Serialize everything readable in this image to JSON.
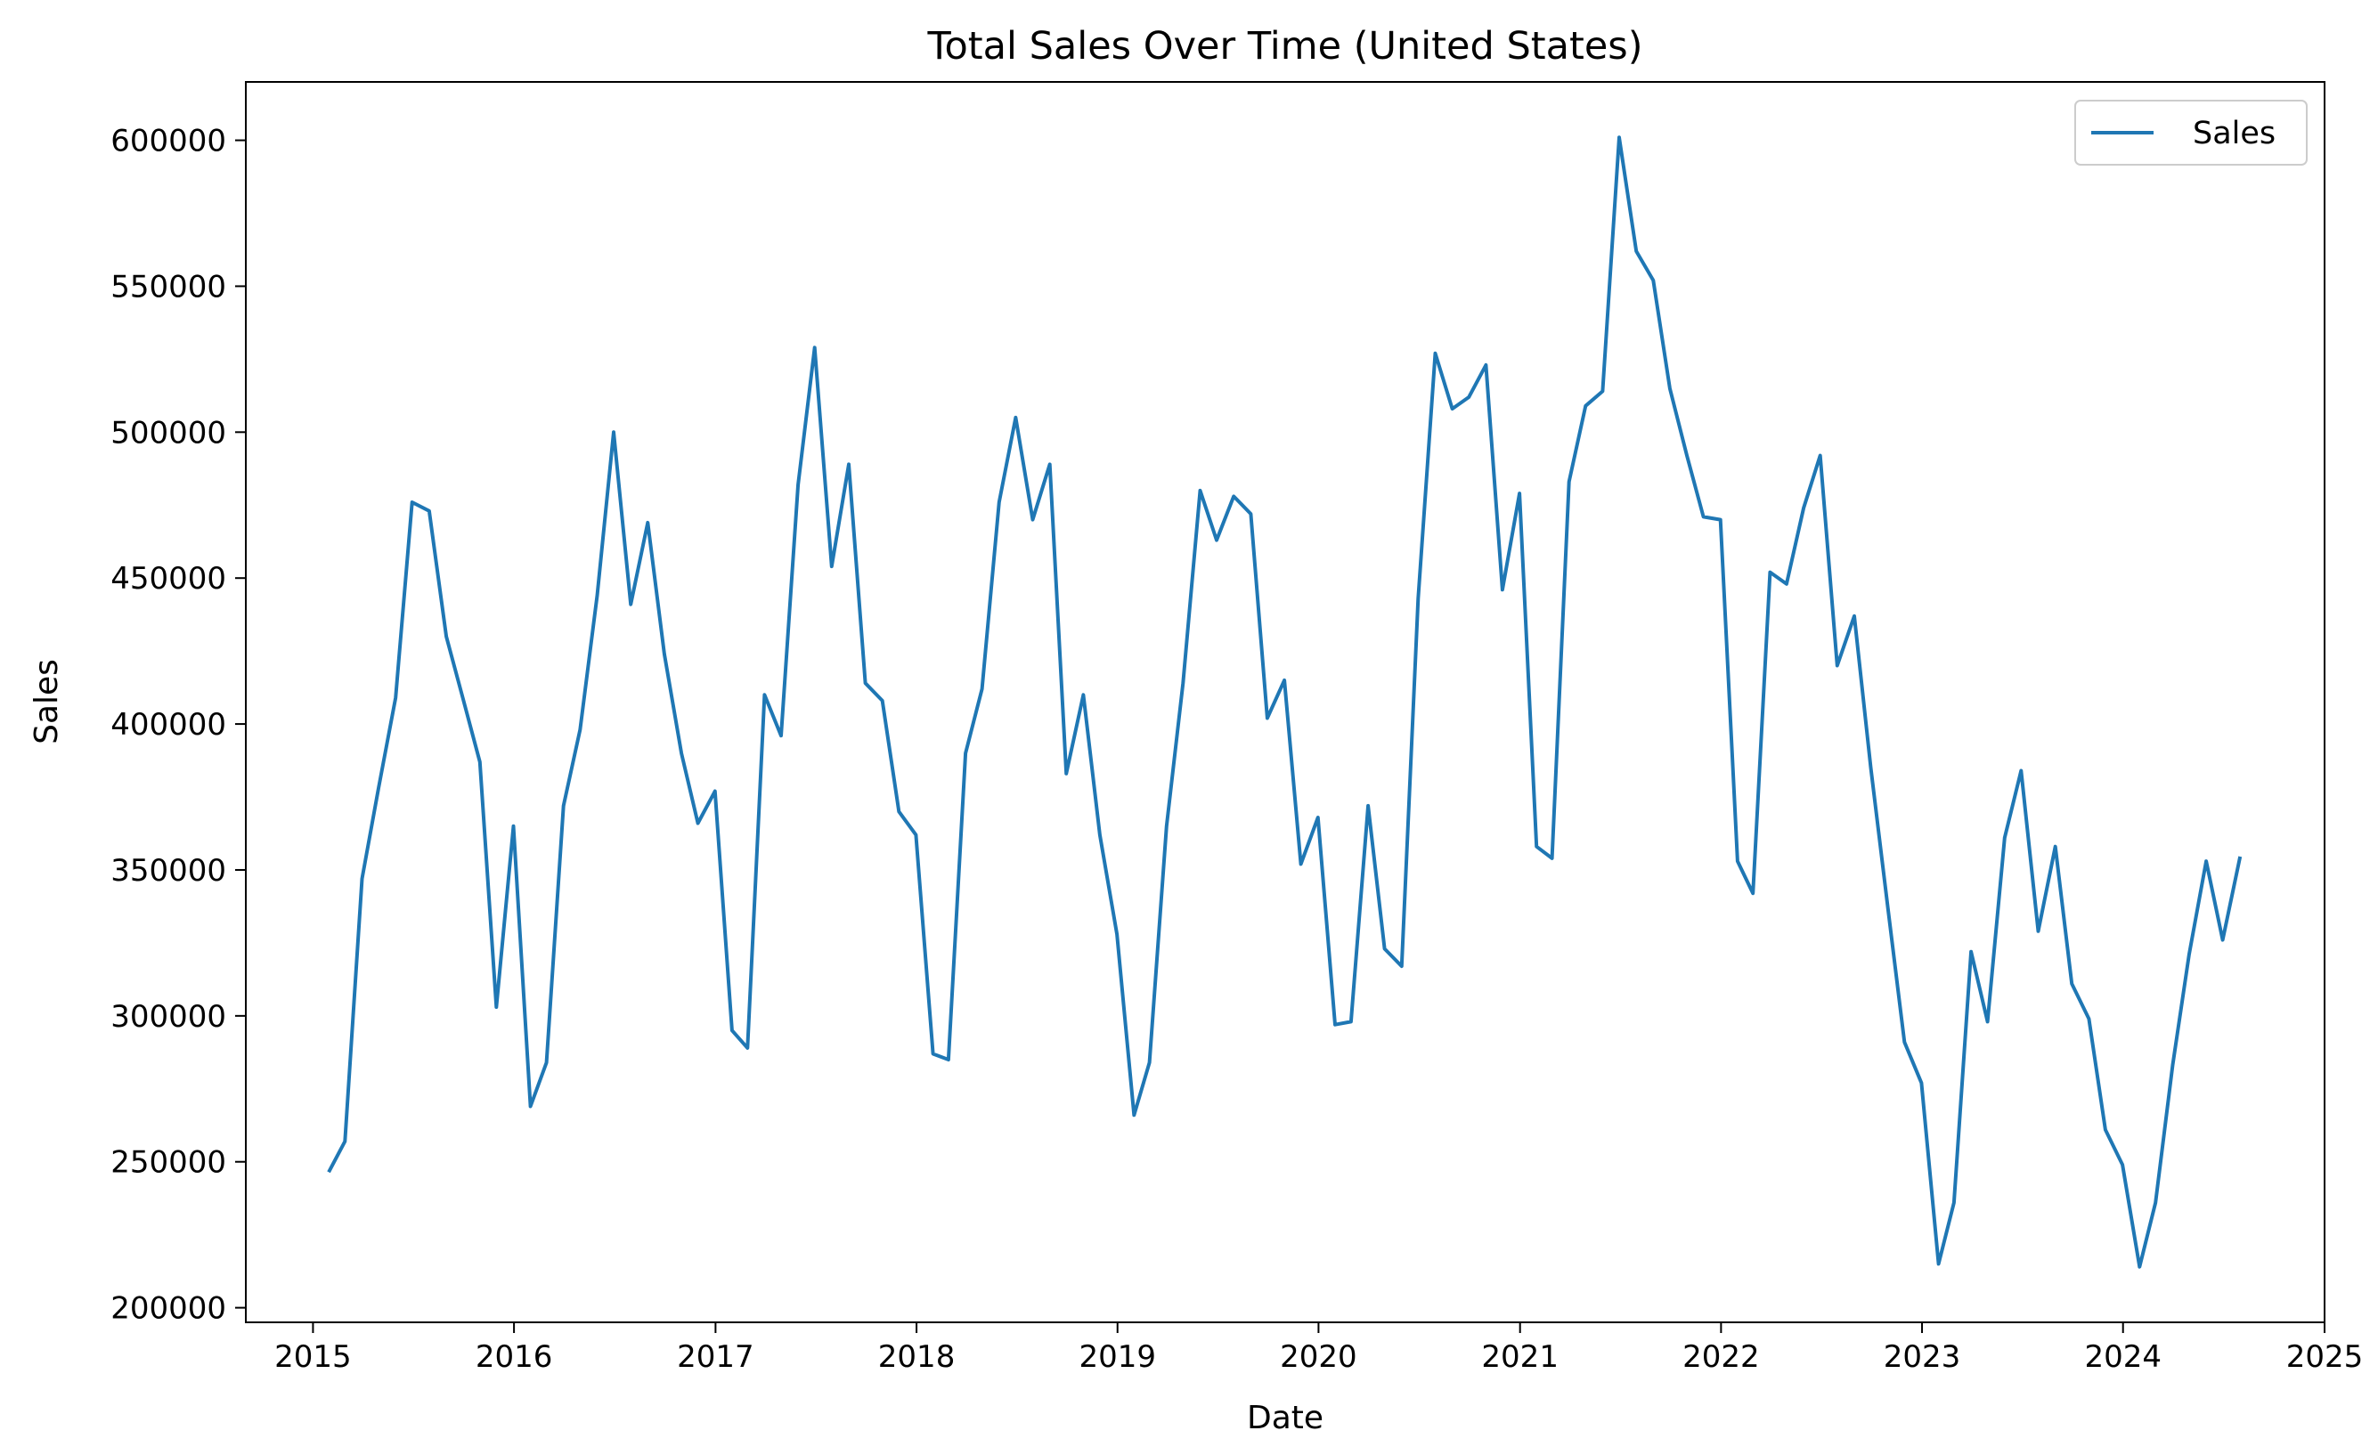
{
  "chart_data": {
    "type": "line",
    "title": "Total Sales Over Time (United States)",
    "xlabel": "Date",
    "ylabel": "Sales",
    "x_ticks": [
      "2015",
      "2016",
      "2017",
      "2018",
      "2019",
      "2020",
      "2021",
      "2022",
      "2023",
      "2024",
      "2025"
    ],
    "y_ticks": [
      "200000",
      "250000",
      "300000",
      "350000",
      "400000",
      "450000",
      "500000",
      "550000",
      "600000"
    ],
    "xlim": [
      "2014-09-01",
      "2025-01-01"
    ],
    "ylim": [
      195000,
      620000
    ],
    "grid": false,
    "legend_position": "top-right",
    "line_color": "#1f77b4",
    "series": [
      {
        "name": "Sales",
        "x": [
          "2015-01-31",
          "2015-02-28",
          "2015-03-31",
          "2015-04-30",
          "2015-05-31",
          "2015-06-30",
          "2015-07-31",
          "2015-08-31",
          "2015-09-30",
          "2015-10-31",
          "2015-11-30",
          "2015-12-31",
          "2016-01-31",
          "2016-02-29",
          "2016-03-31",
          "2016-04-30",
          "2016-05-31",
          "2016-06-30",
          "2016-07-31",
          "2016-08-31",
          "2016-09-30",
          "2016-10-31",
          "2016-11-30",
          "2016-12-31",
          "2017-01-31",
          "2017-02-28",
          "2017-03-31",
          "2017-04-30",
          "2017-05-31",
          "2017-06-30",
          "2017-07-31",
          "2017-08-31",
          "2017-09-30",
          "2017-10-31",
          "2017-11-30",
          "2017-12-31",
          "2018-01-31",
          "2018-02-28",
          "2018-03-31",
          "2018-04-30",
          "2018-05-31",
          "2018-06-30",
          "2018-07-31",
          "2018-08-31",
          "2018-09-30",
          "2018-10-31",
          "2018-11-30",
          "2018-12-31",
          "2019-01-31",
          "2019-02-28",
          "2019-03-31",
          "2019-04-30",
          "2019-05-31",
          "2019-06-30",
          "2019-07-31",
          "2019-08-31",
          "2019-09-30",
          "2019-10-31",
          "2019-11-30",
          "2019-12-31",
          "2020-01-31",
          "2020-02-29",
          "2020-03-31",
          "2020-04-30",
          "2020-05-31",
          "2020-06-30",
          "2020-07-31",
          "2020-08-31",
          "2020-09-30",
          "2020-10-31",
          "2020-11-30",
          "2020-12-31",
          "2021-01-31",
          "2021-02-28",
          "2021-03-31",
          "2021-04-30",
          "2021-05-31",
          "2021-06-30",
          "2021-07-31",
          "2021-08-31",
          "2021-09-30",
          "2021-10-31",
          "2021-11-30",
          "2021-12-31",
          "2022-01-31",
          "2022-02-28",
          "2022-03-31",
          "2022-04-30",
          "2022-05-31",
          "2022-06-30",
          "2022-07-31",
          "2022-08-31",
          "2022-09-30",
          "2022-10-31",
          "2022-11-30",
          "2022-12-31",
          "2023-01-31",
          "2023-02-28",
          "2023-03-31",
          "2023-04-30",
          "2023-05-31",
          "2023-06-30",
          "2023-07-31",
          "2023-08-31",
          "2023-09-30",
          "2023-10-31",
          "2023-11-30",
          "2023-12-31",
          "2024-01-31",
          "2024-02-29",
          "2024-03-31",
          "2024-04-30",
          "2024-05-31",
          "2024-06-30",
          "2024-07-31"
        ],
        "values": [
          247000,
          257000,
          347000,
          378000,
          409000,
          476000,
          473000,
          430000,
          409000,
          387000,
          303000,
          365000,
          269000,
          284000,
          372000,
          398000,
          444000,
          500000,
          441000,
          469000,
          424000,
          390000,
          366000,
          377000,
          295000,
          289000,
          410000,
          396000,
          482000,
          529000,
          454000,
          489000,
          414000,
          408000,
          370000,
          362000,
          287000,
          285000,
          390000,
          412000,
          476000,
          505000,
          470000,
          489000,
          383000,
          410000,
          362000,
          328000,
          266000,
          284000,
          365000,
          414000,
          480000,
          463000,
          478000,
          472000,
          402000,
          415000,
          352000,
          368000,
          297000,
          298000,
          372000,
          323000,
          317000,
          443000,
          527000,
          508000,
          512000,
          523000,
          446000,
          479000,
          358000,
          354000,
          483000,
          509000,
          514000,
          601000,
          562000,
          552000,
          515000,
          492000,
          471000,
          470000,
          353000,
          342000,
          452000,
          448000,
          474000,
          492000,
          420000,
          437000,
          385000,
          337000,
          291000,
          277000,
          215000,
          236000,
          322000,
          298000,
          361000,
          384000,
          329000,
          358000,
          311000,
          299000,
          261000,
          249000,
          214000,
          236000,
          283000,
          321000,
          353000,
          326000,
          354000
        ]
      }
    ]
  }
}
